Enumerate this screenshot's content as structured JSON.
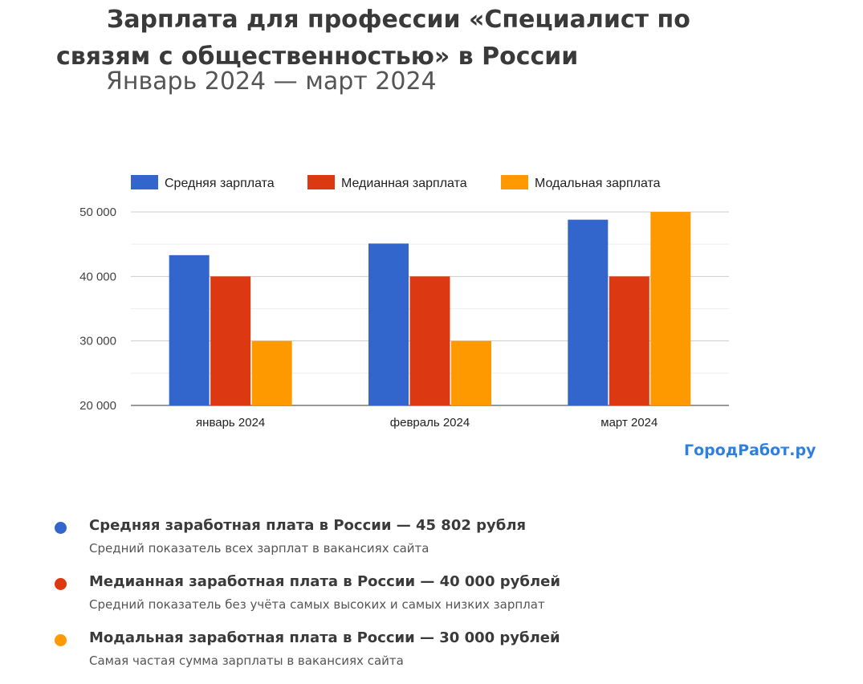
{
  "header": {
    "title": "Зарплата для профессии «Специалист по связям с общественностью» в России",
    "subtitle": "Январь 2024 — март 2024"
  },
  "brand": "ГородРабот.ру",
  "chart_data": {
    "type": "bar",
    "categories": [
      "январь 2024",
      "февраль 2024",
      "март 2024"
    ],
    "series": [
      {
        "name": "Средняя зарплата",
        "color": "#3366cc",
        "values": [
          43300,
          45100,
          48800
        ]
      },
      {
        "name": "Медианная зарплата",
        "color": "#dc3912",
        "values": [
          40000,
          40000,
          40000
        ]
      },
      {
        "name": "Модальная зарплата",
        "color": "#ff9900",
        "values": [
          30000,
          30000,
          50000
        ]
      }
    ],
    "ylim": [
      20000,
      50000
    ],
    "yticks": [
      20000,
      30000,
      40000,
      50000
    ],
    "ytick_labels": [
      "20 000",
      "30 000",
      "40 000",
      "50 000"
    ],
    "grid": true,
    "legend": "top"
  },
  "info": [
    {
      "color": "#3366cc",
      "title": "Средняя заработная плата в России — 45 802 рубля",
      "desc": "Средний показатель всех зарплат в вакансиях сайта"
    },
    {
      "color": "#dc3912",
      "title": "Медианная заработная плата в России — 40 000 рублей",
      "desc": "Средний показатель без учёта самых высоких и самых низких зарплат"
    },
    {
      "color": "#ff9900",
      "title": "Модальная заработная плата в России — 30 000 рублей",
      "desc": "Самая частая сумма зарплаты в вакансиях сайта"
    }
  ]
}
